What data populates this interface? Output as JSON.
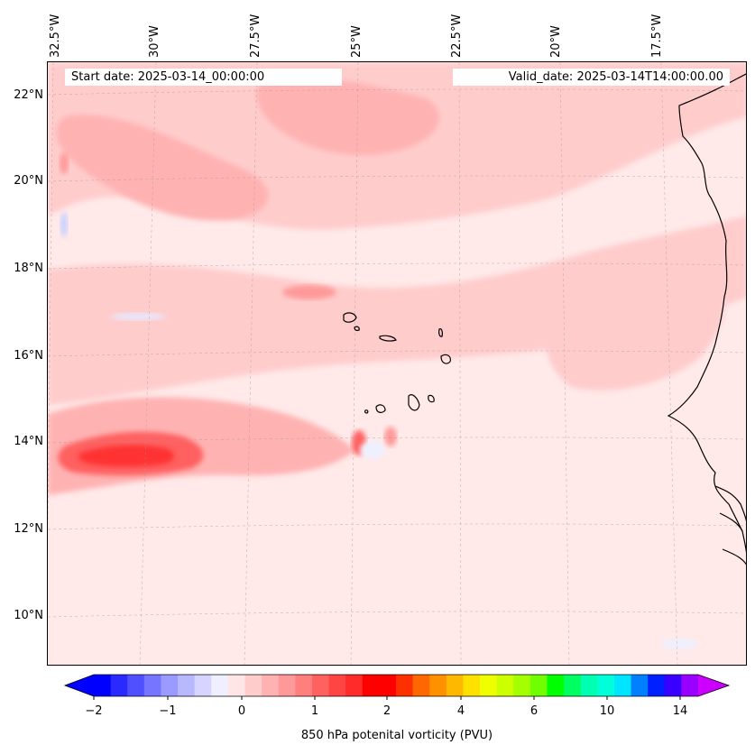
{
  "header": {
    "start_date": "Start date: 2025-03-14_00:00:00",
    "valid_date": "Valid_date: 2025-03-14T14:00:00.00"
  },
  "map": {
    "lon_labels": [
      "32.5°W",
      "30°W",
      "27.5°W",
      "25°W",
      "22.5°W",
      "20°W",
      "17.5°W"
    ],
    "lat_labels": [
      "22°N",
      "20°N",
      "18°N",
      "16°N",
      "14°N",
      "12°N",
      "10°N"
    ],
    "gridlines": true,
    "coastline_color": "#000000",
    "background_fill": "#ffe9e9"
  },
  "colorbar": {
    "label": "850 hPa potenital vorticity (PVU)",
    "tick_labels": [
      "−2",
      "−1",
      "0",
      "1",
      "2",
      "4",
      "6",
      "10",
      "14"
    ],
    "colors": [
      "#0000ff",
      "#2a2aff",
      "#5050ff",
      "#7575ff",
      "#9a9aff",
      "#b8b8ff",
      "#d5d5ff",
      "#efefff",
      "#ffe5e5",
      "#ffcccc",
      "#ffb2b2",
      "#ff9999",
      "#ff7f7f",
      "#ff6060",
      "#ff4444",
      "#ff2a2a",
      "#ff0000",
      "#ff0000",
      "#ff3000",
      "#ff6800",
      "#ff9000",
      "#ffb800",
      "#ffe100",
      "#f0ff00",
      "#ccff00",
      "#a4ff00",
      "#70ff00",
      "#00ff00",
      "#00ff60",
      "#00ffb0",
      "#00ffd8",
      "#00e5ff",
      "#0080ff",
      "#0020ff",
      "#3a00ff",
      "#9a00ff"
    ],
    "extend_low_color": "#0000ff",
    "extend_high_color": "#cc00ff"
  }
}
